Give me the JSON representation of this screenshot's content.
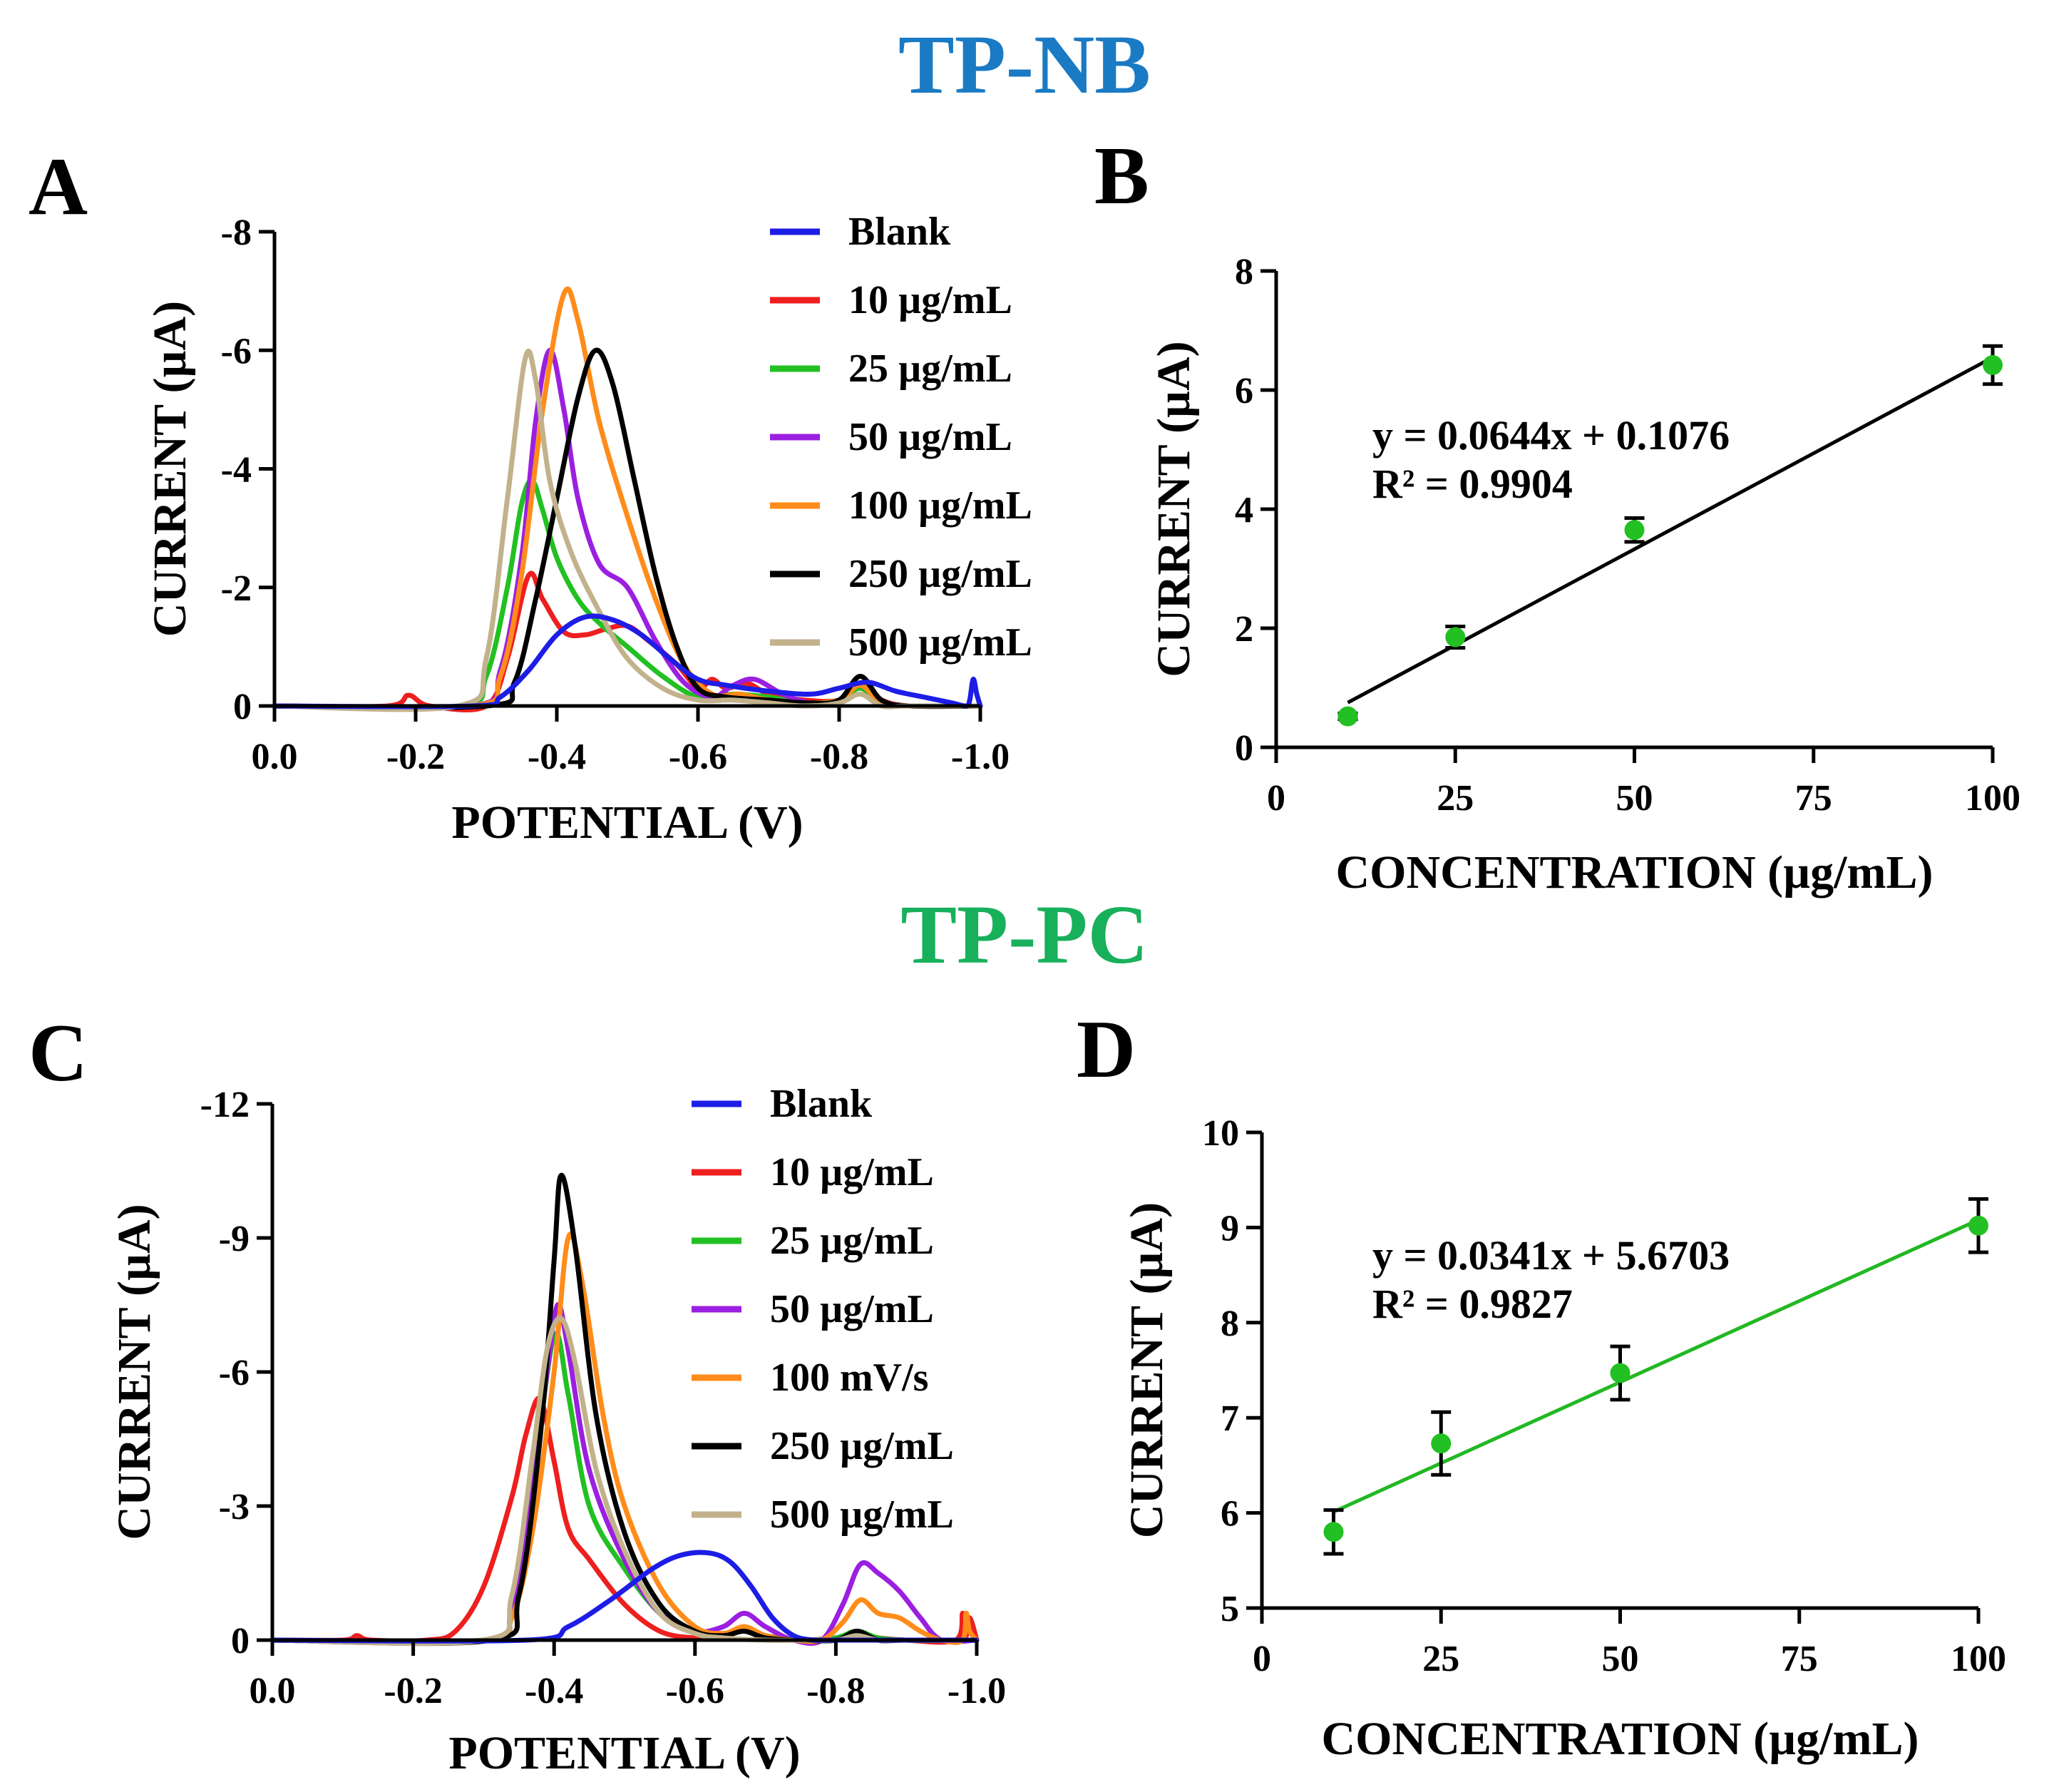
{
  "figure": {
    "section_titles": [
      {
        "text": "TP-NB",
        "color": "#1a7ac4"
      },
      {
        "text": "TP-PC",
        "color": "#18b05a"
      }
    ],
    "panel_letters": [
      "A",
      "B",
      "C",
      "D"
    ]
  },
  "colors": {
    "blank": "#1d1de6",
    "c10": "#ee1f1f",
    "c25": "#22c022",
    "c50": "#9b1fe0",
    "c100": "#ff8c1a",
    "c250": "#000000",
    "c500": "#c2b28b",
    "fit_green": "#22b822",
    "point_green": "#22c022"
  },
  "chart_data": [
    {
      "panel": "A",
      "type": "line",
      "xlabel": "POTENTIAL (V)",
      "ylabel": "CURRENT (µA)",
      "xlim": [
        0.0,
        -1.0
      ],
      "ylim": [
        0,
        -8
      ],
      "xticks": [
        0.0,
        -0.2,
        -0.4,
        -0.6,
        -0.8,
        -1.0
      ],
      "xtick_labels": [
        "0.0",
        "-0.2",
        "-0.4",
        "-0.6",
        "-0.8",
        "-1.0"
      ],
      "yticks": [
        0,
        -2,
        -4,
        -6,
        -8
      ],
      "ytick_labels": [
        "0",
        "-2",
        "-4",
        "-6",
        "-8"
      ],
      "legend_position": "top-right",
      "series": [
        {
          "name": "Blank",
          "color_key": "blank",
          "x": [
            0,
            -0.28,
            -0.32,
            -0.36,
            -0.4,
            -0.44,
            -0.48,
            -0.52,
            -0.56,
            -0.6,
            -0.64,
            -0.7,
            -0.76,
            -0.8,
            -0.84,
            -0.88,
            -0.92,
            -0.96,
            -0.98,
            -0.985,
            -0.99,
            -0.995,
            -1.0
          ],
          "y": [
            0,
            0,
            -0.15,
            -0.6,
            -1.2,
            -1.5,
            -1.45,
            -1.2,
            -0.8,
            -0.45,
            -0.35,
            -0.25,
            -0.2,
            -0.3,
            -0.4,
            -0.25,
            -0.15,
            -0.05,
            0,
            -0.1,
            -0.45,
            -0.2,
            0
          ]
        },
        {
          "name": "10 µg/mL",
          "color_key": "c10",
          "x": [
            0,
            -0.16,
            -0.19,
            -0.22,
            -0.3,
            -0.33,
            -0.36,
            -0.38,
            -0.41,
            -0.44,
            -0.47,
            -0.5,
            -0.53,
            -0.57,
            -0.6,
            -0.62,
            -0.64,
            -0.67,
            -0.7,
            -0.75,
            -0.8,
            -0.83,
            -0.86,
            -0.9,
            -1.0
          ],
          "y": [
            0,
            0,
            -0.18,
            0,
            0,
            -0.8,
            -2.2,
            -1.8,
            -1.25,
            -1.2,
            -1.3,
            -1.35,
            -1.1,
            -0.7,
            -0.3,
            -0.45,
            -0.3,
            -0.38,
            -0.2,
            -0.1,
            -0.1,
            -0.35,
            -0.1,
            0,
            0
          ]
        },
        {
          "name": "25 µg/mL",
          "color_key": "c25",
          "x": [
            0,
            -0.26,
            -0.3,
            -0.33,
            -0.35,
            -0.365,
            -0.38,
            -0.4,
            -0.43,
            -0.46,
            -0.5,
            -0.55,
            -0.6,
            -0.65,
            -0.7,
            -0.75,
            -0.8,
            -0.83,
            -0.86,
            -0.9,
            -1.0
          ],
          "y": [
            0,
            0,
            -0.5,
            -2.0,
            -3.4,
            -3.8,
            -3.3,
            -2.5,
            -1.8,
            -1.4,
            -1.0,
            -0.5,
            -0.15,
            -0.2,
            -0.15,
            -0.05,
            -0.1,
            -0.3,
            -0.05,
            0,
            0
          ]
        },
        {
          "name": "50 µg/mL",
          "color_key": "c50",
          "x": [
            0,
            -0.28,
            -0.32,
            -0.35,
            -0.37,
            -0.39,
            -0.41,
            -0.43,
            -0.46,
            -0.5,
            -0.54,
            -0.58,
            -0.62,
            -0.65,
            -0.68,
            -0.72,
            -0.76,
            -0.8,
            -0.83,
            -0.86,
            -0.9,
            -1.0
          ],
          "y": [
            0,
            0,
            -0.6,
            -2.5,
            -4.8,
            -6.0,
            -5.0,
            -3.5,
            -2.4,
            -2.0,
            -1.1,
            -0.4,
            -0.15,
            -0.35,
            -0.45,
            -0.2,
            -0.05,
            -0.1,
            -0.35,
            -0.05,
            0,
            0
          ]
        },
        {
          "name": "100 µg/mL",
          "color_key": "c100",
          "x": [
            0,
            -0.28,
            -0.32,
            -0.35,
            -0.38,
            -0.41,
            -0.43,
            -0.46,
            -0.5,
            -0.54,
            -0.58,
            -0.62,
            -0.66,
            -0.7,
            -0.75,
            -0.8,
            -0.83,
            -0.86,
            -0.9,
            -1.0
          ],
          "y": [
            0,
            0,
            -0.5,
            -2.2,
            -5.0,
            -6.95,
            -6.5,
            -4.8,
            -3.2,
            -1.8,
            -0.7,
            -0.2,
            -0.2,
            -0.1,
            -0.05,
            -0.1,
            -0.35,
            -0.05,
            0,
            0
          ]
        },
        {
          "name": "250 µg/mL",
          "color_key": "c250",
          "x": [
            0,
            -0.3,
            -0.34,
            -0.37,
            -0.4,
            -0.43,
            -0.455,
            -0.48,
            -0.51,
            -0.54,
            -0.57,
            -0.6,
            -0.64,
            -0.7,
            -0.76,
            -0.8,
            -0.83,
            -0.86,
            -0.9,
            -1.0
          ],
          "y": [
            0,
            0,
            -0.4,
            -1.8,
            -3.5,
            -5.2,
            -6.0,
            -5.4,
            -3.8,
            -2.2,
            -1.0,
            -0.3,
            -0.15,
            -0.1,
            -0.05,
            -0.1,
            -0.5,
            -0.1,
            0,
            0
          ]
        },
        {
          "name": "500 µg/mL",
          "color_key": "c500",
          "x": [
            0,
            -0.26,
            -0.3,
            -0.33,
            -0.355,
            -0.37,
            -0.39,
            -0.42,
            -0.46,
            -0.5,
            -0.55,
            -0.6,
            -0.65,
            -0.7,
            -0.75,
            -0.8,
            -0.83,
            -0.86,
            -0.9,
            -1.0
          ],
          "y": [
            0,
            0,
            -0.8,
            -3.5,
            -5.85,
            -5.5,
            -3.8,
            -2.6,
            -1.6,
            -0.8,
            -0.3,
            -0.1,
            -0.1,
            -0.05,
            0,
            -0.05,
            -0.2,
            0,
            0,
            0
          ]
        }
      ]
    },
    {
      "panel": "B",
      "type": "scatter",
      "xlabel": "CONCENTRATION (µg/mL)",
      "ylabel": "CURRENT (µA)",
      "xlim": [
        0,
        100
      ],
      "ylim": [
        0,
        8
      ],
      "xticks": [
        0,
        25,
        50,
        75,
        100
      ],
      "xtick_labels": [
        "0",
        "25",
        "50",
        "75",
        "100"
      ],
      "yticks": [
        0,
        2,
        4,
        6,
        8
      ],
      "ytick_labels": [
        "0",
        "2",
        "4",
        "6",
        "8"
      ],
      "points": {
        "x": [
          10,
          25,
          50,
          100
        ],
        "y": [
          0.52,
          1.85,
          3.65,
          6.42
        ],
        "err": [
          0.05,
          0.18,
          0.2,
          0.32
        ]
      },
      "fit": {
        "slope": 0.0644,
        "intercept": 0.1076,
        "x_range": [
          10,
          100
        ],
        "color_key": "c250"
      },
      "equation": "y = 0.0644x + 0.1076",
      "r2": "R² = 0.9904"
    },
    {
      "panel": "C",
      "type": "line",
      "xlabel": "POTENTIAL (V)",
      "ylabel": "CURRENT (µA)",
      "xlim": [
        0.0,
        -1.0
      ],
      "ylim": [
        0,
        -12
      ],
      "xticks": [
        0.0,
        -0.2,
        -0.4,
        -0.6,
        -0.8,
        -1.0
      ],
      "xtick_labels": [
        "0.0",
        "-0.2",
        "-0.4",
        "-0.6",
        "-0.8",
        "-1.0"
      ],
      "yticks": [
        0,
        -3,
        -6,
        -9,
        -12
      ],
      "ytick_labels": [
        "0",
        "-3",
        "-6",
        "-9",
        "-12"
      ],
      "legend_position": "top-right",
      "series": [
        {
          "name": "Blank",
          "color_key": "blank",
          "x": [
            0,
            -0.36,
            -0.42,
            -0.48,
            -0.54,
            -0.58,
            -0.62,
            -0.65,
            -0.68,
            -0.71,
            -0.74,
            -0.77,
            -0.8,
            -1.0
          ],
          "y": [
            0,
            0,
            -0.3,
            -0.9,
            -1.6,
            -1.9,
            -1.95,
            -1.75,
            -1.2,
            -0.5,
            -0.1,
            0,
            0,
            0
          ]
        },
        {
          "name": "10 µg/mL",
          "color_key": "c10",
          "x": [
            0,
            -0.1,
            -0.12,
            -0.14,
            -0.22,
            -0.26,
            -0.3,
            -0.34,
            -0.36,
            -0.38,
            -0.4,
            -0.42,
            -0.45,
            -0.5,
            -0.55,
            -0.6,
            -0.64,
            -0.67,
            -0.7,
            -0.75,
            -0.8,
            -0.83,
            -0.86,
            -0.9,
            -0.97,
            -0.98,
            -0.985,
            -0.99,
            -1.0
          ],
          "y": [
            0,
            0,
            -0.1,
            0,
            0,
            -0.2,
            -1.2,
            -3.2,
            -4.6,
            -5.4,
            -4.0,
            -2.5,
            -1.8,
            -0.8,
            -0.2,
            -0.05,
            -0.1,
            -0.25,
            -0.1,
            0,
            -0.05,
            -0.15,
            -0.05,
            0,
            0,
            -0.6,
            -0.1,
            -0.5,
            0
          ]
        },
        {
          "name": "25 µg/mL",
          "color_key": "c25",
          "x": [
            0,
            -0.3,
            -0.34,
            -0.37,
            -0.4,
            -0.42,
            -0.45,
            -0.5,
            -0.55,
            -0.6,
            -0.64,
            -0.67,
            -0.7,
            -0.75,
            -0.8,
            -0.83,
            -0.86,
            -0.9,
            -1.0
          ],
          "y": [
            0,
            0,
            -0.8,
            -3.5,
            -6.8,
            -5.5,
            -3.0,
            -1.6,
            -0.6,
            -0.15,
            -0.1,
            -0.3,
            -0.1,
            0,
            -0.05,
            -0.2,
            -0.05,
            0,
            0
          ]
        },
        {
          "name": "50 µg/mL",
          "color_key": "c50",
          "x": [
            0,
            -0.3,
            -0.34,
            -0.37,
            -0.39,
            -0.405,
            -0.42,
            -0.45,
            -0.5,
            -0.55,
            -0.6,
            -0.64,
            -0.67,
            -0.7,
            -0.74,
            -0.78,
            -0.81,
            -0.835,
            -0.86,
            -0.89,
            -0.92,
            -0.95,
            -1.0
          ],
          "y": [
            0,
            0,
            -0.7,
            -3.5,
            -6.0,
            -7.5,
            -6.5,
            -3.8,
            -1.8,
            -0.6,
            -0.2,
            -0.3,
            -0.6,
            -0.3,
            0,
            0,
            -0.8,
            -1.7,
            -1.5,
            -1.1,
            -0.5,
            0,
            0
          ]
        },
        {
          "name": "100 mV/s",
          "color_key": "c100",
          "x": [
            0,
            -0.3,
            -0.34,
            -0.37,
            -0.4,
            -0.42,
            -0.44,
            -0.47,
            -0.5,
            -0.55,
            -0.6,
            -0.64,
            -0.67,
            -0.7,
            -0.74,
            -0.78,
            -0.81,
            -0.835,
            -0.86,
            -0.89,
            -0.92,
            -0.95,
            -0.98,
            -0.985,
            -0.99,
            -1.0
          ],
          "y": [
            0,
            0,
            -0.5,
            -2.5,
            -6.0,
            -9.0,
            -8.0,
            -5.0,
            -3.0,
            -1.2,
            -0.3,
            -0.15,
            -0.3,
            -0.1,
            0,
            0,
            -0.4,
            -0.9,
            -0.6,
            -0.5,
            -0.2,
            0,
            0,
            -0.6,
            -0.2,
            0
          ]
        },
        {
          "name": "250 µg/mL",
          "color_key": "c250",
          "x": [
            0,
            -0.31,
            -0.35,
            -0.38,
            -0.4,
            -0.41,
            -0.43,
            -0.46,
            -0.5,
            -0.55,
            -0.6,
            -0.64,
            -0.67,
            -0.7,
            -0.75,
            -0.8,
            -0.83,
            -0.86,
            -0.9,
            -1.0
          ],
          "y": [
            0,
            0,
            -1.0,
            -4.5,
            -8.5,
            -10.4,
            -8.8,
            -5.0,
            -2.4,
            -0.8,
            -0.2,
            -0.1,
            -0.2,
            -0.05,
            0,
            0,
            -0.2,
            0,
            0,
            0
          ]
        },
        {
          "name": "500 µg/mL",
          "color_key": "c500",
          "x": [
            0,
            -0.3,
            -0.34,
            -0.37,
            -0.39,
            -0.41,
            -0.43,
            -0.46,
            -0.5,
            -0.55,
            -0.6,
            -0.64,
            -0.7,
            -0.75,
            -0.8,
            -0.83,
            -0.86,
            -0.9,
            -1.0
          ],
          "y": [
            0,
            0,
            -1.0,
            -4.2,
            -6.5,
            -7.2,
            -6.2,
            -3.8,
            -2.0,
            -0.6,
            -0.15,
            -0.05,
            0,
            0,
            0,
            -0.1,
            0,
            0,
            0
          ]
        }
      ]
    },
    {
      "panel": "D",
      "type": "scatter",
      "xlabel": "CONCENTRATION (µg/mL)",
      "ylabel": "CURRENT (µA)",
      "xlim": [
        0,
        100
      ],
      "ylim": [
        5,
        10
      ],
      "xticks": [
        0,
        25,
        50,
        75,
        100
      ],
      "xtick_labels": [
        "0",
        "25",
        "50",
        "75",
        "100"
      ],
      "yticks": [
        5,
        6,
        7,
        8,
        9,
        10
      ],
      "ytick_labels": [
        "5",
        "6",
        "7",
        "8",
        "9",
        "10"
      ],
      "points": {
        "x": [
          10,
          25,
          50,
          100
        ],
        "y": [
          5.8,
          6.73,
          7.47,
          9.02
        ],
        "err": [
          0.23,
          0.33,
          0.28,
          0.28
        ]
      },
      "fit": {
        "slope": 0.0341,
        "intercept": 5.6703,
        "x_range": [
          10,
          100
        ],
        "color_key": "fit_green"
      },
      "equation": "y = 0.0341x + 5.6703",
      "r2": "R² = 0.9827"
    }
  ]
}
